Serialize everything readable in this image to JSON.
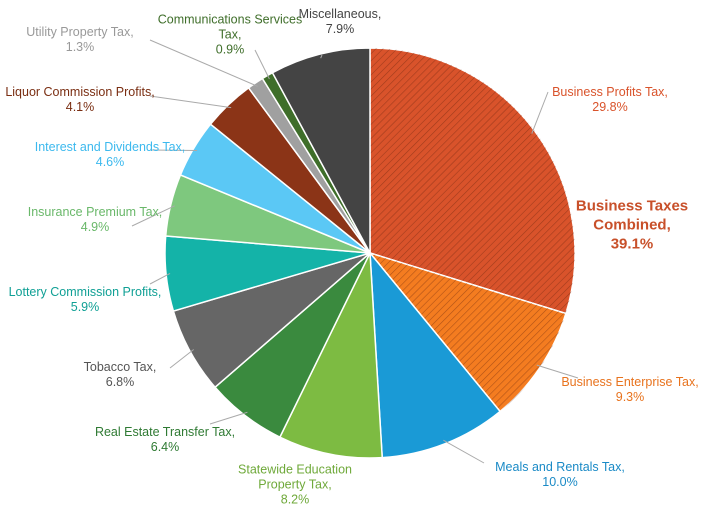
{
  "chart_data": {
    "type": "pie",
    "categories": [
      "Business Profits Tax,",
      "Business Enterprise Tax,",
      "Meals and Rentals Tax,",
      "Statewide Education Property Tax,",
      "Real Estate Transfer Tax,",
      "Tobacco Tax,",
      "Lottery Commission Profits,",
      "Insurance Premium Tax,",
      "Interest and Dividends Tax,",
      "Liquor Commission Profits,",
      "Utility Property Tax,",
      "Communications Services Tax,",
      "Miscellaneous,"
    ],
    "values": [
      29.8,
      9.3,
      10.0,
      8.2,
      6.4,
      6.8,
      5.9,
      4.9,
      4.6,
      4.1,
      1.3,
      0.9,
      7.9
    ],
    "value_labels": [
      "29.8%",
      "9.3%",
      "10.0%",
      "8.2%",
      "6.4%",
      "6.8%",
      "5.9%",
      "4.9%",
      "4.6%",
      "4.1%",
      "1.3%",
      "0.9%",
      "7.9%"
    ],
    "colors": [
      "#d9532b",
      "#f47c20",
      "#1a9ad6",
      "#7dbb42",
      "#3a8a3e",
      "#666666",
      "#14b3a8",
      "#7ec87e",
      "#5bc8f5",
      "#8b3417",
      "#a0a0a0",
      "#3f6e2a",
      "#444444"
    ],
    "hatched": [
      true,
      true,
      false,
      false,
      false,
      false,
      false,
      false,
      false,
      false,
      false,
      false,
      false
    ],
    "annotation": {
      "text": "Business Taxes Combined,",
      "value_label": "39.1%"
    }
  }
}
